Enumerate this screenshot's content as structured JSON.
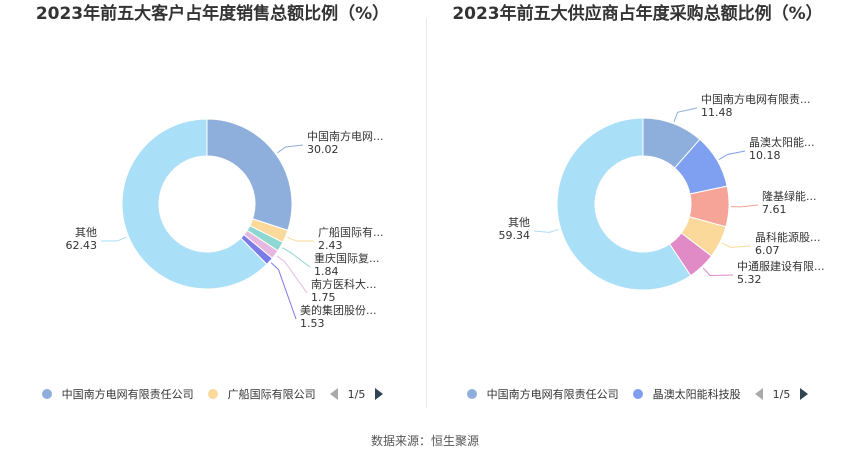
{
  "source": "数据来源：恒生聚源",
  "charts": [
    {
      "title": "2023年前五大客户占年度销售总额比例（%）",
      "legend": [
        {
          "label": "中国南方电网有限责任公司",
          "color": "#8eaedc"
        },
        {
          "label": "广船国际有限公司",
          "color": "#fbd99a"
        }
      ],
      "pager": "1/5",
      "chart_data": {
        "type": "pie",
        "slices": [
          {
            "label": "中国南方电网...",
            "value": 30.02,
            "value_text": "30.02",
            "color": "#8eaedc"
          },
          {
            "label": "广船国际有...",
            "value": 2.43,
            "value_text": "2.43",
            "color": "#fbd99a"
          },
          {
            "label": "重庆国际复...",
            "value": 1.84,
            "value_text": "1.84",
            "color": "#8fd7d3"
          },
          {
            "label": "南方医科大...",
            "value": 1.75,
            "value_text": "1.75",
            "color": "#e7b8df"
          },
          {
            "label": "美的集团股份...",
            "value": 1.53,
            "value_text": "1.53",
            "color": "#7b7be8"
          },
          {
            "label": "其他",
            "value": 62.43,
            "value_text": "62.43",
            "color": "#aadff8"
          }
        ]
      }
    },
    {
      "title": "2023年前五大供应商占年度采购总额比例（%）",
      "legend": [
        {
          "label": "中国南方电网有限责任公司",
          "color": "#8eaedc"
        },
        {
          "label": "晶澳太阳能科技股",
          "color": "#7f9ff0"
        }
      ],
      "pager": "1/5",
      "chart_data": {
        "type": "pie",
        "slices": [
          {
            "label": "中国南方电网有限责...",
            "value": 11.48,
            "value_text": "11.48",
            "color": "#8eaedc"
          },
          {
            "label": "晶澳太阳能...",
            "value": 10.18,
            "value_text": "10.18",
            "color": "#7f9ff0"
          },
          {
            "label": "隆基绿能...",
            "value": 7.61,
            "value_text": "7.61",
            "color": "#f5a497"
          },
          {
            "label": "晶科能源股...",
            "value": 6.07,
            "value_text": "6.07",
            "color": "#fbd99a"
          },
          {
            "label": "中通服建设有限...",
            "value": 5.32,
            "value_text": "5.32",
            "color": "#e08ac6"
          },
          {
            "label": "其他",
            "value": 59.34,
            "value_text": "59.34",
            "color": "#aadff8"
          }
        ]
      }
    }
  ]
}
